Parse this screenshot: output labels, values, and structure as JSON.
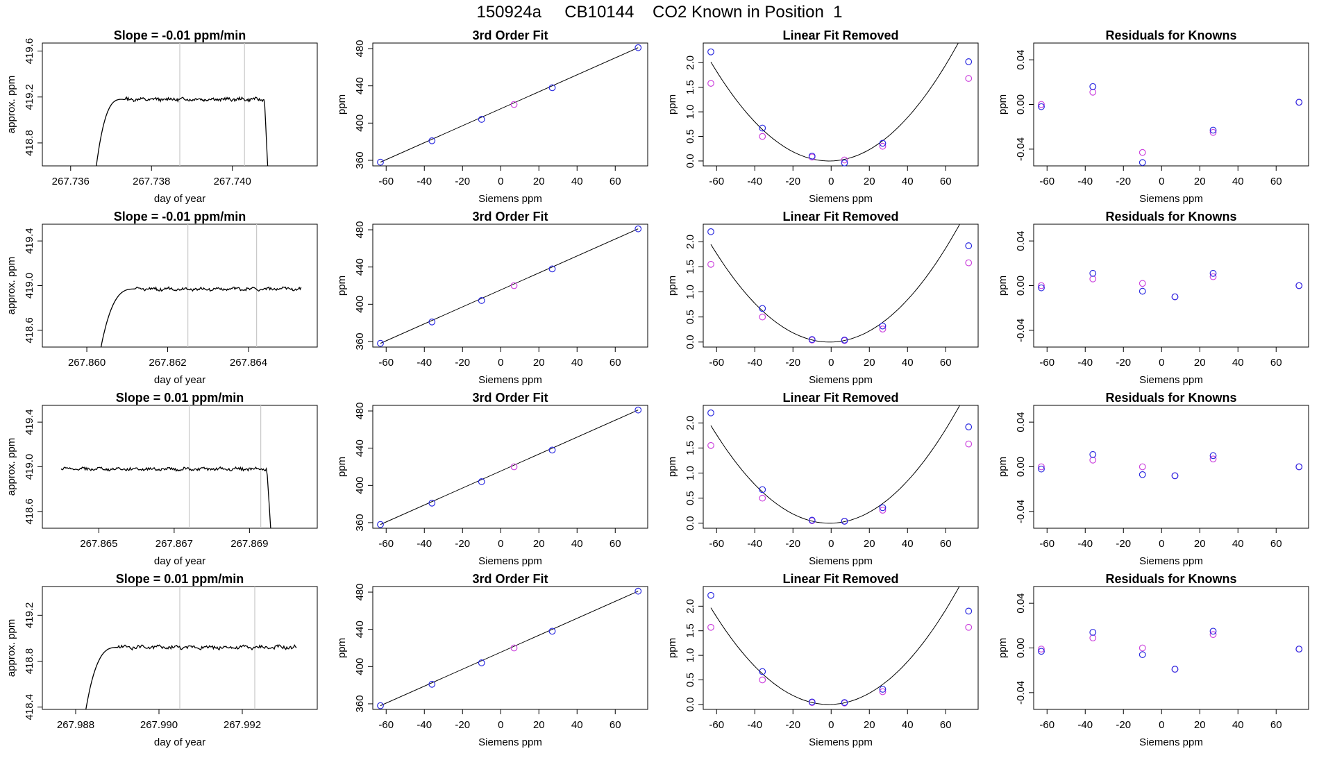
{
  "figure": {
    "title": "150924a     CB10144    CO2 Known in Position  1"
  },
  "colors": {
    "trace": "#000000",
    "fit_line": "#000000",
    "marker_blue": "#2a2ae0",
    "marker_magenta": "#cc44dd",
    "gray_line": "#c8c8c8"
  },
  "chart_data": [
    {
      "type": "line",
      "row": 1,
      "col": 1,
      "title": "Slope =  -0.01  ppm/min",
      "xlabel": "day of year",
      "ylabel": "approx. ppm",
      "xlim": [
        267.7353,
        267.7421
      ],
      "ylim": [
        418.6,
        419.67
      ],
      "xticks": [
        267.736,
        267.738,
        267.74
      ],
      "xtick_labels": [
        "267.736",
        "267.738",
        "267.740"
      ],
      "yticks": [
        418.8,
        419.2,
        419.6
      ],
      "ytick_labels": [
        "418.8",
        "419.2",
        "419.6"
      ],
      "vlines": [
        267.7387,
        267.7403
      ],
      "trace": {
        "x0": 267.7366,
        "x1": 267.7409,
        "plateau": 419.18,
        "noise": 0.012,
        "rise_frac": 0.16,
        "tail": "drop"
      }
    },
    {
      "type": "line",
      "row": 1,
      "col": 2,
      "title": "3rd Order Fit",
      "xlabel": "Siemens ppm",
      "ylabel": "ppm",
      "xlim": [
        -67,
        77
      ],
      "ylim": [
        354,
        486
      ],
      "xticks": [
        -60,
        -40,
        -20,
        0,
        20,
        40,
        60
      ],
      "xtick_labels": [
        "-60",
        "-40",
        "-20",
        "0",
        "20",
        "40",
        "60"
      ],
      "yticks": [
        360,
        400,
        440,
        480
      ],
      "ytick_labels": [
        "360",
        "400",
        "440",
        "480"
      ],
      "fit": {
        "kind": "line",
        "x": [
          -63,
          72
        ],
        "y": [
          358,
          481
        ]
      },
      "points_blue": {
        "x": [
          -63,
          -36,
          -10,
          27,
          72
        ],
        "y": [
          358,
          381,
          404,
          438,
          481
        ]
      },
      "points_magenta": {
        "x": [
          7
        ],
        "y": [
          420
        ]
      }
    },
    {
      "type": "scatter",
      "row": 1,
      "col": 3,
      "title": "Linear Fit Removed",
      "xlabel": "Siemens ppm",
      "ylabel": "ppm",
      "xlim": [
        -67,
        77
      ],
      "ylim": [
        -0.1,
        2.4
      ],
      "xticks": [
        -60,
        -40,
        -20,
        0,
        20,
        40,
        60
      ],
      "xtick_labels": [
        "-60",
        "-40",
        "-20",
        "0",
        "20",
        "40",
        "60"
      ],
      "yticks": [
        0.0,
        0.5,
        1.0,
        1.5,
        2.0
      ],
      "ytick_labels": [
        "0.0",
        "0.5",
        "1.0",
        "1.5",
        "2.0"
      ],
      "fit": {
        "kind": "quad",
        "a": 0.000525,
        "b": 0.0011,
        "c": 0.0
      },
      "points_blue": {
        "x": [
          -63,
          -36,
          -10,
          7,
          27,
          72
        ],
        "y": [
          2.22,
          0.67,
          0.1,
          -0.04,
          0.36,
          2.02
        ]
      },
      "points_magenta": {
        "x": [
          -63,
          -36,
          -10,
          7,
          27,
          72
        ],
        "y": [
          1.58,
          0.5,
          0.08,
          0.02,
          0.3,
          1.68
        ]
      }
    },
    {
      "type": "scatter",
      "row": 1,
      "col": 4,
      "title": "Residuals for Knowns",
      "xlabel": "Siemens ppm",
      "ylabel": "ppm",
      "xlim": [
        -67,
        77
      ],
      "ylim": [
        -0.055,
        0.055
      ],
      "xticks": [
        -60,
        -40,
        -20,
        0,
        20,
        40,
        60
      ],
      "xtick_labels": [
        "-60",
        "-40",
        "-20",
        "0",
        "20",
        "40",
        "60"
      ],
      "yticks": [
        -0.04,
        0.0,
        0.04
      ],
      "ytick_labels": [
        "-0.04",
        "0.00",
        "0.04"
      ],
      "points_blue": {
        "x": [
          -63,
          -36,
          -10,
          27,
          72
        ],
        "y": [
          -0.002,
          0.016,
          -0.052,
          -0.023,
          0.002
        ]
      },
      "points_magenta": {
        "x": [
          -63,
          -36,
          -10,
          27,
          72
        ],
        "y": [
          0.0,
          0.011,
          -0.043,
          -0.025,
          0.002
        ]
      }
    },
    {
      "type": "line",
      "row": 2,
      "col": 1,
      "title": "Slope =  -0.01  ppm/min",
      "xlabel": "day of year",
      "ylabel": "approx. ppm",
      "xlim": [
        267.8589,
        267.8657
      ],
      "ylim": [
        418.45,
        419.55
      ],
      "xticks": [
        267.86,
        267.862,
        267.864
      ],
      "xtick_labels": [
        "267.860",
        "267.862",
        "267.864"
      ],
      "yticks": [
        418.6,
        419.0,
        419.4
      ],
      "ytick_labels": [
        "418.6",
        "419.0",
        "419.4"
      ],
      "vlines": [
        267.8625,
        267.8642
      ],
      "trace": {
        "x0": 267.8603,
        "x1": 267.8653,
        "plateau": 418.97,
        "noise": 0.012,
        "rise_frac": 0.18,
        "tail": "flat"
      }
    },
    {
      "type": "line",
      "row": 2,
      "col": 2,
      "title": "3rd Order Fit",
      "xlabel": "Siemens ppm",
      "ylabel": "ppm",
      "xlim": [
        -67,
        77
      ],
      "ylim": [
        354,
        486
      ],
      "xticks": [
        -60,
        -40,
        -20,
        0,
        20,
        40,
        60
      ],
      "xtick_labels": [
        "-60",
        "-40",
        "-20",
        "0",
        "20",
        "40",
        "60"
      ],
      "yticks": [
        360,
        400,
        440,
        480
      ],
      "ytick_labels": [
        "360",
        "400",
        "440",
        "480"
      ],
      "fit": {
        "kind": "line",
        "x": [
          -63,
          72
        ],
        "y": [
          358,
          481
        ]
      },
      "points_blue": {
        "x": [
          -63,
          -36,
          -10,
          27,
          72
        ],
        "y": [
          358,
          381,
          404,
          438,
          481
        ]
      },
      "points_magenta": {
        "x": [
          7
        ],
        "y": [
          420
        ]
      }
    },
    {
      "type": "scatter",
      "row": 2,
      "col": 3,
      "title": "Linear Fit Removed",
      "xlabel": "Siemens ppm",
      "ylabel": "ppm",
      "xlim": [
        -67,
        77
      ],
      "ylim": [
        -0.1,
        2.35
      ],
      "xticks": [
        -60,
        -40,
        -20,
        0,
        20,
        40,
        60
      ],
      "xtick_labels": [
        "-60",
        "-40",
        "-20",
        "0",
        "20",
        "40",
        "60"
      ],
      "yticks": [
        0.0,
        0.5,
        1.0,
        1.5,
        2.0
      ],
      "ytick_labels": [
        "0.0",
        "0.5",
        "1.0",
        "1.5",
        "2.0"
      ],
      "fit": {
        "kind": "quad",
        "a": 0.000505,
        "b": 0.0009,
        "c": 0.0
      },
      "points_blue": {
        "x": [
          -63,
          -36,
          -10,
          7,
          27,
          72
        ],
        "y": [
          2.2,
          0.67,
          0.05,
          0.04,
          0.32,
          1.92
        ]
      },
      "points_magenta": {
        "x": [
          -63,
          -36,
          -10,
          7,
          27,
          72
        ],
        "y": [
          1.55,
          0.5,
          0.04,
          0.03,
          0.26,
          1.58
        ]
      }
    },
    {
      "type": "scatter",
      "row": 2,
      "col": 4,
      "title": "Residuals for Knowns",
      "xlabel": "Siemens ppm",
      "ylabel": "ppm",
      "xlim": [
        -67,
        77
      ],
      "ylim": [
        -0.055,
        0.055
      ],
      "xticks": [
        -60,
        -40,
        -20,
        0,
        20,
        40,
        60
      ],
      "xtick_labels": [
        "-60",
        "-40",
        "-20",
        "0",
        "20",
        "40",
        "60"
      ],
      "yticks": [
        -0.04,
        0.0,
        0.04
      ],
      "ytick_labels": [
        "-0.04",
        "0.00",
        "0.04"
      ],
      "points_blue": {
        "x": [
          -63,
          -36,
          -10,
          7,
          27,
          72
        ],
        "y": [
          -0.002,
          0.011,
          -0.005,
          -0.01,
          0.011,
          0.0
        ]
      },
      "points_magenta": {
        "x": [
          -63,
          -36,
          -10,
          7,
          27,
          72
        ],
        "y": [
          0.0,
          0.006,
          0.002,
          -0.01,
          0.008,
          0.0
        ]
      }
    },
    {
      "type": "line",
      "row": 3,
      "col": 1,
      "title": "Slope =  0.01  ppm/min",
      "xlabel": "day of year",
      "ylabel": "approx. ppm",
      "xlim": [
        267.8635,
        267.8708
      ],
      "ylim": [
        418.45,
        419.55
      ],
      "xticks": [
        267.865,
        267.867,
        267.869
      ],
      "xtick_labels": [
        "267.865",
        "267.867",
        "267.869"
      ],
      "yticks": [
        418.6,
        419.0,
        419.4
      ],
      "ytick_labels": [
        "418.6",
        "419.0",
        "419.4"
      ],
      "vlines": [
        267.8674,
        267.8693
      ],
      "trace": {
        "x0": 267.864,
        "x1": 267.8696,
        "plateau": 418.98,
        "noise": 0.012,
        "rise_frac": 0.0,
        "tail": "drop"
      }
    },
    {
      "type": "line",
      "row": 3,
      "col": 2,
      "title": "3rd Order Fit",
      "xlabel": "Siemens ppm",
      "ylabel": "ppm",
      "xlim": [
        -67,
        77
      ],
      "ylim": [
        354,
        486
      ],
      "xticks": [
        -60,
        -40,
        -20,
        0,
        20,
        40,
        60
      ],
      "xtick_labels": [
        "-60",
        "-40",
        "-20",
        "0",
        "20",
        "40",
        "60"
      ],
      "yticks": [
        360,
        400,
        440,
        480
      ],
      "ytick_labels": [
        "360",
        "400",
        "440",
        "480"
      ],
      "fit": {
        "kind": "line",
        "x": [
          -63,
          72
        ],
        "y": [
          358,
          481
        ]
      },
      "points_blue": {
        "x": [
          -63,
          -36,
          -10,
          27,
          72
        ],
        "y": [
          358,
          381,
          404,
          438,
          481
        ]
      },
      "points_magenta": {
        "x": [
          7
        ],
        "y": [
          420
        ]
      }
    },
    {
      "type": "scatter",
      "row": 3,
      "col": 3,
      "title": "Linear Fit Removed",
      "xlabel": "Siemens ppm",
      "ylabel": "ppm",
      "xlim": [
        -67,
        77
      ],
      "ylim": [
        -0.1,
        2.35
      ],
      "xticks": [
        -60,
        -40,
        -20,
        0,
        20,
        40,
        60
      ],
      "xtick_labels": [
        "-60",
        "-40",
        "-20",
        "0",
        "20",
        "40",
        "60"
      ],
      "yticks": [
        0.0,
        0.5,
        1.0,
        1.5,
        2.0
      ],
      "ytick_labels": [
        "0.0",
        "0.5",
        "1.0",
        "1.5",
        "2.0"
      ],
      "fit": {
        "kind": "quad",
        "a": 0.000505,
        "b": 0.0009,
        "c": 0.0
      },
      "points_blue": {
        "x": [
          -63,
          -36,
          -10,
          7,
          27,
          72
        ],
        "y": [
          2.2,
          0.67,
          0.06,
          0.04,
          0.31,
          1.92
        ]
      },
      "points_magenta": {
        "x": [
          -63,
          -36,
          -10,
          7,
          27,
          72
        ],
        "y": [
          1.55,
          0.5,
          0.05,
          0.04,
          0.26,
          1.58
        ]
      }
    },
    {
      "type": "scatter",
      "row": 3,
      "col": 4,
      "title": "Residuals for Knowns",
      "xlabel": "Siemens ppm",
      "ylabel": "ppm",
      "xlim": [
        -67,
        77
      ],
      "ylim": [
        -0.055,
        0.055
      ],
      "xticks": [
        -60,
        -40,
        -20,
        0,
        20,
        40,
        60
      ],
      "xtick_labels": [
        "-60",
        "-40",
        "-20",
        "0",
        "20",
        "40",
        "60"
      ],
      "yticks": [
        -0.04,
        0.0,
        0.04
      ],
      "ytick_labels": [
        "-0.04",
        "0.00",
        "0.04"
      ],
      "points_blue": {
        "x": [
          -63,
          -36,
          -10,
          7,
          27,
          72
        ],
        "y": [
          -0.002,
          0.011,
          -0.007,
          -0.008,
          0.01,
          0.0
        ]
      },
      "points_magenta": {
        "x": [
          -63,
          -36,
          -10,
          7,
          27,
          72
        ],
        "y": [
          0.0,
          0.006,
          0.0,
          -0.008,
          0.007,
          0.0
        ]
      }
    },
    {
      "type": "line",
      "row": 4,
      "col": 1,
      "title": "Slope =  0.01  ppm/min",
      "xlabel": "day of year",
      "ylabel": "approx. ppm",
      "xlim": [
        267.9872,
        267.9938
      ],
      "ylim": [
        418.38,
        419.45
      ],
      "xticks": [
        267.988,
        267.99,
        267.992
      ],
      "xtick_labels": [
        "267.988",
        "267.990",
        "267.992"
      ],
      "yticks": [
        418.4,
        418.8,
        419.2
      ],
      "ytick_labels": [
        "418.4",
        "418.8",
        "419.2"
      ],
      "vlines": [
        267.9905,
        267.9923
      ],
      "trace": {
        "x0": 267.9882,
        "x1": 267.9933,
        "plateau": 418.92,
        "noise": 0.014,
        "rise_frac": 0.16,
        "tail": "flat"
      }
    },
    {
      "type": "line",
      "row": 4,
      "col": 2,
      "title": "3rd Order Fit",
      "xlabel": "Siemens ppm",
      "ylabel": "ppm",
      "xlim": [
        -67,
        77
      ],
      "ylim": [
        354,
        486
      ],
      "xticks": [
        -60,
        -40,
        -20,
        0,
        20,
        40,
        60
      ],
      "xtick_labels": [
        "-60",
        "-40",
        "-20",
        "0",
        "20",
        "40",
        "60"
      ],
      "yticks": [
        360,
        400,
        440,
        480
      ],
      "ytick_labels": [
        "360",
        "400",
        "440",
        "480"
      ],
      "fit": {
        "kind": "line",
        "x": [
          -63,
          72
        ],
        "y": [
          358,
          481
        ]
      },
      "points_blue": {
        "x": [
          -63,
          -36,
          -10,
          27,
          72
        ],
        "y": [
          358,
          381,
          404,
          438,
          481
        ]
      },
      "points_magenta": {
        "x": [
          7
        ],
        "y": [
          420
        ]
      }
    },
    {
      "type": "scatter",
      "row": 4,
      "col": 3,
      "title": "Linear Fit Removed",
      "xlabel": "Siemens ppm",
      "ylabel": "ppm",
      "xlim": [
        -67,
        77
      ],
      "ylim": [
        -0.1,
        2.4
      ],
      "xticks": [
        -60,
        -40,
        -20,
        0,
        20,
        40,
        60
      ],
      "xtick_labels": [
        "-60",
        "-40",
        "-20",
        "0",
        "20",
        "40",
        "60"
      ],
      "yticks": [
        0.0,
        0.5,
        1.0,
        1.5,
        2.0
      ],
      "ytick_labels": [
        "0.0",
        "0.5",
        "1.0",
        "1.5",
        "2.0"
      ],
      "fit": {
        "kind": "quad",
        "a": 0.000515,
        "b": 0.0012,
        "c": 0.0
      },
      "points_blue": {
        "x": [
          -63,
          -36,
          -10,
          7,
          27,
          72
        ],
        "y": [
          2.22,
          0.67,
          0.05,
          0.04,
          0.31,
          1.9
        ]
      },
      "points_magenta": {
        "x": [
          -63,
          -36,
          -10,
          7,
          27,
          72
        ],
        "y": [
          1.57,
          0.5,
          0.04,
          0.03,
          0.26,
          1.57
        ]
      }
    },
    {
      "type": "scatter",
      "row": 4,
      "col": 4,
      "title": "Residuals for Knowns",
      "xlabel": "Siemens ppm",
      "ylabel": "ppm",
      "xlim": [
        -67,
        77
      ],
      "ylim": [
        -0.055,
        0.055
      ],
      "xticks": [
        -60,
        -40,
        -20,
        0,
        20,
        40,
        60
      ],
      "xtick_labels": [
        "-60",
        "-40",
        "-20",
        "0",
        "20",
        "40",
        "60"
      ],
      "yticks": [
        -0.04,
        0.0,
        0.04
      ],
      "ytick_labels": [
        "-0.04",
        "0.00",
        "0.04"
      ],
      "points_blue": {
        "x": [
          -63,
          -36,
          -10,
          7,
          27,
          72
        ],
        "y": [
          -0.003,
          0.014,
          -0.006,
          -0.019,
          0.015,
          -0.001
        ]
      },
      "points_magenta": {
        "x": [
          -63,
          -36,
          -10,
          7,
          27,
          72
        ],
        "y": [
          -0.001,
          0.009,
          0.0,
          -0.019,
          0.012,
          -0.001
        ]
      }
    }
  ]
}
